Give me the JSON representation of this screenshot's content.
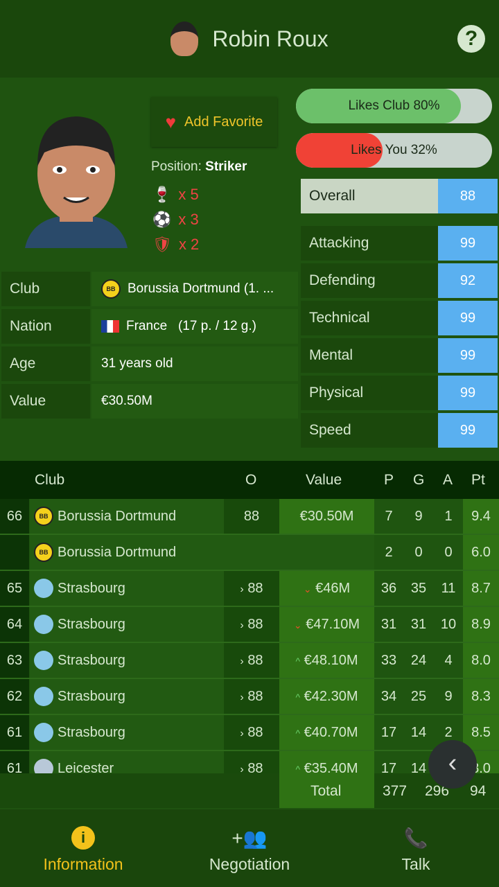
{
  "header": {
    "title": "Robin Roux",
    "help": "?"
  },
  "profile": {
    "favorite_label": "Add Favorite",
    "position_label": "Position:",
    "position": "Striker",
    "trophies": [
      {
        "icon": "trophy-icon",
        "glyph": "🍷",
        "count": "x 5"
      },
      {
        "icon": "ball-icon",
        "glyph": "⚽",
        "count": "x 3"
      },
      {
        "icon": "shield-icon",
        "glyph": "🛡",
        "count": "x 2"
      }
    ]
  },
  "bars": [
    {
      "label": "Likes Club 80%",
      "value": 80,
      "color": "#6cc06a"
    },
    {
      "label": "Likes You 32%",
      "value": 32,
      "color": "#f04236"
    }
  ],
  "overall": {
    "label": "Overall",
    "value": "88"
  },
  "stats": [
    {
      "label": "Attacking",
      "value": "99"
    },
    {
      "label": "Defending",
      "value": "92"
    },
    {
      "label": "Technical",
      "value": "99"
    },
    {
      "label": "Mental",
      "value": "99"
    },
    {
      "label": "Physical",
      "value": "99"
    },
    {
      "label": "Speed",
      "value": "99"
    }
  ],
  "info": [
    {
      "label": "Club",
      "value": "Borussia Dortmund (1. ..."
    },
    {
      "label": "Nation",
      "value": "France   (17 p. / 12 g.)"
    },
    {
      "label": "Age",
      "value": "31 years old"
    },
    {
      "label": "Value",
      "value": "€30.50M"
    }
  ],
  "table": {
    "headers": {
      "club": "Club",
      "o": "O",
      "value": "Value",
      "p": "P",
      "g": "G",
      "a": "A",
      "pt": "Pt"
    },
    "rows": [
      {
        "rank": "66",
        "club": "Borussia Dortmund",
        "crest": "bvb",
        "o": "88",
        "trend_o": "",
        "value": "€30.50M",
        "trend": "",
        "p": "7",
        "g": "9",
        "a": "1",
        "pt": "9.4"
      },
      {
        "rank": "",
        "club": "Borussia Dortmund",
        "crest": "bvb",
        "o": "",
        "trend_o": "",
        "value": "",
        "trend": "",
        "p": "2",
        "g": "0",
        "a": "0",
        "pt": "6.0"
      },
      {
        "rank": "65",
        "club": "Strasbourg",
        "crest": "str",
        "o": "88",
        "trend_o": "›",
        "value": "€46M",
        "trend": "down",
        "p": "36",
        "g": "35",
        "a": "11",
        "pt": "8.7"
      },
      {
        "rank": "64",
        "club": "Strasbourg",
        "crest": "str",
        "o": "88",
        "trend_o": "›",
        "value": "€47.10M",
        "trend": "down",
        "p": "31",
        "g": "31",
        "a": "10",
        "pt": "8.9"
      },
      {
        "rank": "63",
        "club": "Strasbourg",
        "crest": "str",
        "o": "88",
        "trend_o": "›",
        "value": "€48.10M",
        "trend": "up",
        "p": "33",
        "g": "24",
        "a": "4",
        "pt": "8.0"
      },
      {
        "rank": "62",
        "club": "Strasbourg",
        "crest": "str",
        "o": "88",
        "trend_o": "›",
        "value": "€42.30M",
        "trend": "up",
        "p": "34",
        "g": "25",
        "a": "9",
        "pt": "8.3"
      },
      {
        "rank": "61",
        "club": "Strasbourg",
        "crest": "str",
        "o": "88",
        "trend_o": "›",
        "value": "€40.70M",
        "trend": "up",
        "p": "17",
        "g": "14",
        "a": "2",
        "pt": "8.5"
      },
      {
        "rank": "61",
        "club": "Leicester",
        "crest": "lei",
        "o": "88",
        "trend_o": "›",
        "value": "€35.40M",
        "trend": "up",
        "p": "17",
        "g": "14",
        "a": "",
        "pt": "8.0"
      }
    ],
    "total": {
      "label": "Total",
      "p": "377",
      "g": "296",
      "a": "94"
    }
  },
  "nav": [
    {
      "label": "Information",
      "active": true
    },
    {
      "label": "Negotiation",
      "active": false
    },
    {
      "label": "Talk",
      "active": false
    }
  ]
}
